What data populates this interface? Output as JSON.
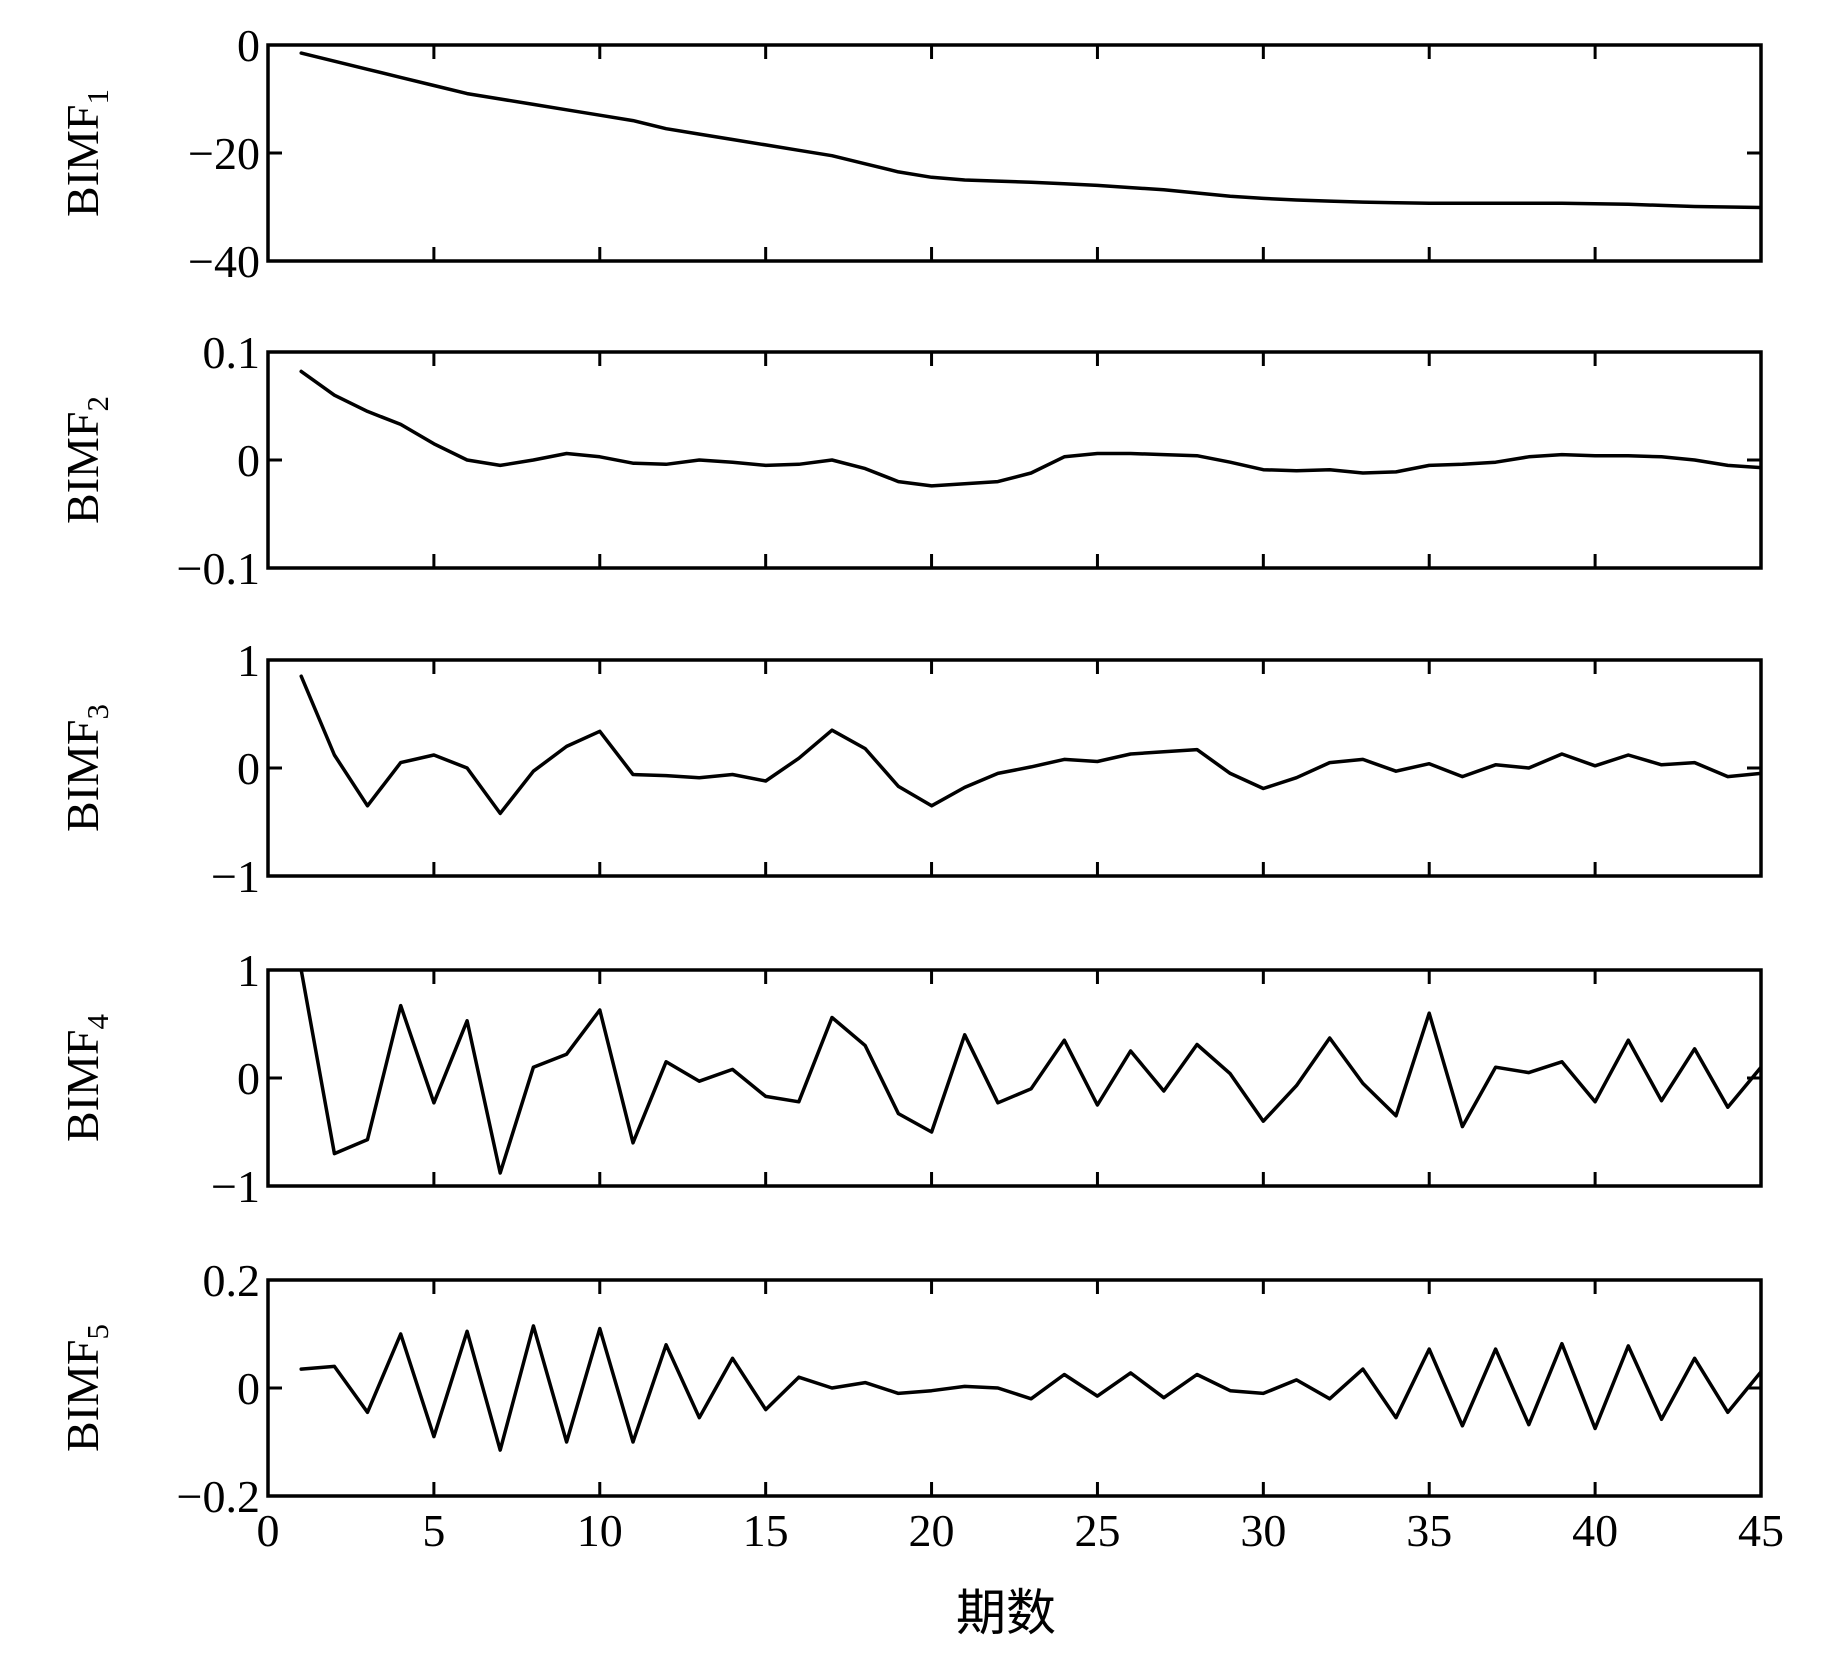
{
  "figure": {
    "xlabel": "期数"
  },
  "chart_data": [
    {
      "type": "line",
      "ylabel": "BIMF",
      "ylabel_sub": "1",
      "xlim": [
        0,
        45
      ],
      "ylim": [
        -40,
        0
      ],
      "xticks": [
        0,
        5,
        10,
        15,
        20,
        25,
        30,
        35,
        40,
        45
      ],
      "yticks": [
        -40,
        -20,
        0
      ],
      "ytick_labels": [
        "−40",
        "−20",
        "0"
      ],
      "x": [
        1,
        2,
        3,
        4,
        5,
        6,
        7,
        8,
        9,
        10,
        11,
        12,
        13,
        14,
        15,
        16,
        17,
        18,
        19,
        20,
        21,
        22,
        23,
        24,
        25,
        26,
        27,
        28,
        29,
        30,
        31,
        32,
        33,
        34,
        35,
        36,
        37,
        38,
        39,
        40,
        41,
        42,
        43,
        44,
        45
      ],
      "values": [
        -1.5,
        -3,
        -4.5,
        -6,
        -7.5,
        -9,
        -10,
        -11,
        -12,
        -13,
        -14,
        -15.5,
        -16.5,
        -17.5,
        -18.5,
        -19.5,
        -20.5,
        -22,
        -23.5,
        -24.5,
        -25,
        -25.2,
        -25.4,
        -25.7,
        -26,
        -26.4,
        -26.8,
        -27.4,
        -28,
        -28.4,
        -28.7,
        -28.9,
        -29.1,
        -29.2,
        -29.3,
        -29.3,
        -29.3,
        -29.3,
        -29.3,
        -29.4,
        -29.5,
        -29.7,
        -29.9,
        -30.0,
        -30.1
      ]
    },
    {
      "type": "line",
      "ylabel": "BIMF",
      "ylabel_sub": "2",
      "xlim": [
        0,
        45
      ],
      "ylim": [
        -0.1,
        0.1
      ],
      "xticks": [
        0,
        5,
        10,
        15,
        20,
        25,
        30,
        35,
        40,
        45
      ],
      "yticks": [
        -0.1,
        0,
        0.1
      ],
      "ytick_labels": [
        "−0.1",
        "0",
        "0.1"
      ],
      "x": [
        1,
        2,
        3,
        4,
        5,
        6,
        7,
        8,
        9,
        10,
        11,
        12,
        13,
        14,
        15,
        16,
        17,
        18,
        19,
        20,
        21,
        22,
        23,
        24,
        25,
        26,
        27,
        28,
        29,
        30,
        31,
        32,
        33,
        34,
        35,
        36,
        37,
        38,
        39,
        40,
        41,
        42,
        43,
        44,
        45
      ],
      "values": [
        0.082,
        0.06,
        0.045,
        0.033,
        0.015,
        0,
        -0.005,
        0,
        0.006,
        0.003,
        -0.003,
        -0.004,
        0,
        -0.002,
        -0.005,
        -0.004,
        0,
        -0.008,
        -0.02,
        -0.024,
        -0.022,
        -0.02,
        -0.012,
        0.003,
        0.006,
        0.006,
        0.005,
        0.004,
        -0.002,
        -0.009,
        -0.01,
        -0.009,
        -0.012,
        -0.011,
        -0.005,
        -0.004,
        -0.002,
        0.003,
        0.005,
        0.004,
        0.004,
        0.003,
        0,
        -0.005,
        -0.007
      ]
    },
    {
      "type": "line",
      "ylabel": "BIMF",
      "ylabel_sub": "3",
      "xlim": [
        0,
        45
      ],
      "ylim": [
        -1,
        1
      ],
      "xticks": [
        0,
        5,
        10,
        15,
        20,
        25,
        30,
        35,
        40,
        45
      ],
      "yticks": [
        -1,
        0,
        1
      ],
      "ytick_labels": [
        "−1",
        "0",
        "1"
      ],
      "x": [
        1,
        2,
        3,
        4,
        5,
        6,
        7,
        8,
        9,
        10,
        11,
        12,
        13,
        14,
        15,
        16,
        17,
        18,
        19,
        20,
        21,
        22,
        23,
        24,
        25,
        26,
        27,
        28,
        29,
        30,
        31,
        32,
        33,
        34,
        35,
        36,
        37,
        38,
        39,
        40,
        41,
        42,
        43,
        44,
        45
      ],
      "values": [
        0.85,
        0.12,
        -0.35,
        0.05,
        0.12,
        0,
        -0.42,
        -0.03,
        0.2,
        0.34,
        -0.06,
        -0.07,
        -0.09,
        -0.06,
        -0.12,
        0.09,
        0.35,
        0.18,
        -0.17,
        -0.35,
        -0.18,
        -0.05,
        0.01,
        0.08,
        0.06,
        0.13,
        0.15,
        0.17,
        -0.05,
        -0.19,
        -0.09,
        0.05,
        0.08,
        -0.03,
        0.04,
        -0.08,
        0.03,
        0,
        0.13,
        0.02,
        0.12,
        0.03,
        0.05,
        -0.08,
        -0.05
      ]
    },
    {
      "type": "line",
      "ylabel": "BIMF",
      "ylabel_sub": "4",
      "xlim": [
        0,
        45
      ],
      "ylim": [
        -1,
        1
      ],
      "xticks": [
        0,
        5,
        10,
        15,
        20,
        25,
        30,
        35,
        40,
        45
      ],
      "yticks": [
        -1,
        0,
        1
      ],
      "ytick_labels": [
        "−1",
        "0",
        "1"
      ],
      "x": [
        1,
        2,
        3,
        4,
        5,
        6,
        7,
        8,
        9,
        10,
        11,
        12,
        13,
        14,
        15,
        16,
        17,
        18,
        19,
        20,
        21,
        22,
        23,
        24,
        25,
        26,
        27,
        28,
        29,
        30,
        31,
        32,
        33,
        34,
        35,
        36,
        37,
        38,
        39,
        40,
        41,
        42,
        43,
        44,
        45
      ],
      "values": [
        1.0,
        -0.7,
        -0.57,
        0.67,
        -0.23,
        0.53,
        -0.88,
        0.1,
        0.22,
        0.63,
        -0.6,
        0.15,
        -0.03,
        0.08,
        -0.17,
        -0.22,
        0.56,
        0.3,
        -0.33,
        -0.5,
        0.4,
        -0.23,
        -0.1,
        0.35,
        -0.25,
        0.25,
        -0.12,
        0.31,
        0.04,
        -0.4,
        -0.07,
        0.37,
        -0.05,
        -0.35,
        0.6,
        -0.45,
        0.1,
        0.05,
        0.15,
        -0.22,
        0.35,
        -0.21,
        0.27,
        -0.27,
        0.1
      ]
    },
    {
      "type": "line",
      "ylabel": "BIMF",
      "ylabel_sub": "5",
      "xlim": [
        0,
        45
      ],
      "ylim": [
        -0.2,
        0.2
      ],
      "xticks": [
        0,
        5,
        10,
        15,
        20,
        25,
        30,
        35,
        40,
        45
      ],
      "yticks": [
        -0.2,
        0,
        0.2
      ],
      "ytick_labels": [
        "−0.2",
        "0",
        "0.2"
      ],
      "xtick_labels": [
        "0",
        "5",
        "10",
        "15",
        "20",
        "25",
        "30",
        "35",
        "40",
        "45"
      ],
      "x": [
        1,
        2,
        3,
        4,
        5,
        6,
        7,
        8,
        9,
        10,
        11,
        12,
        13,
        14,
        15,
        16,
        17,
        18,
        19,
        20,
        21,
        22,
        23,
        24,
        25,
        26,
        27,
        28,
        29,
        30,
        31,
        32,
        33,
        34,
        35,
        36,
        37,
        38,
        39,
        40,
        41,
        42,
        43,
        44,
        45
      ],
      "values": [
        0.035,
        0.04,
        -0.045,
        0.1,
        -0.09,
        0.105,
        -0.115,
        0.115,
        -0.1,
        0.11,
        -0.1,
        0.08,
        -0.055,
        0.055,
        -0.04,
        0.02,
        0,
        0.01,
        -0.01,
        -0.005,
        0.003,
        0,
        -0.02,
        0.025,
        -0.015,
        0.028,
        -0.018,
        0.025,
        -0.005,
        -0.01,
        0.015,
        -0.02,
        0.035,
        -0.055,
        0.072,
        -0.07,
        0.072,
        -0.068,
        0.082,
        -0.075,
        0.078,
        -0.058,
        0.055,
        -0.045,
        0.03
      ]
    }
  ]
}
